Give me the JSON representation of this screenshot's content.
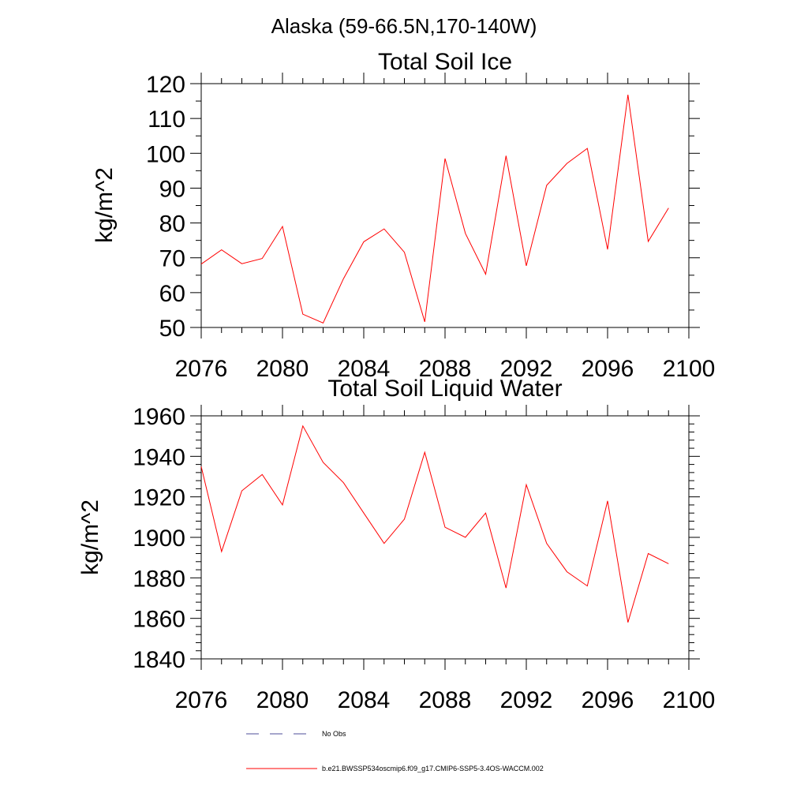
{
  "suptitle": "Alaska (59-66.5N,170-140W)",
  "chart_data": [
    {
      "type": "line",
      "title": "Total Soil Ice",
      "xlabel": "",
      "ylabel": "kg/m^2",
      "xlim": [
        2076,
        2100
      ],
      "ylim": [
        50,
        120
      ],
      "xticks": [
        2076,
        2080,
        2084,
        2088,
        2092,
        2096,
        2100
      ],
      "yticks": [
        50,
        60,
        70,
        80,
        90,
        100,
        110,
        120
      ],
      "series": [
        {
          "name": "b.e21.BWSSP534oscmip6.f09_g17.CMIP6-SSP5-3.4OS-WACCM.002",
          "color": "#ff0000",
          "x": [
            2076,
            2077,
            2078,
            2079,
            2080,
            2081,
            2082,
            2083,
            2084,
            2085,
            2086,
            2087,
            2088,
            2089,
            2090,
            2091,
            2092,
            2093,
            2094,
            2095,
            2096,
            2097,
            2098,
            2099
          ],
          "values": [
            68.2,
            72.3,
            68.3,
            69.8,
            79.0,
            53.8,
            51.3,
            64.0,
            74.6,
            78.3,
            71.6,
            51.6,
            98.5,
            77.0,
            65.3,
            99.3,
            67.7,
            90.8,
            97.1,
            101.4,
            72.4,
            116.8,
            74.7,
            84.3
          ]
        }
      ]
    },
    {
      "type": "line",
      "title": "Total Soil Liquid Water",
      "xlabel": "",
      "ylabel": "kg/m^2",
      "xlim": [
        2076,
        2100
      ],
      "ylim": [
        1840,
        1960
      ],
      "xticks": [
        2076,
        2080,
        2084,
        2088,
        2092,
        2096,
        2100
      ],
      "yticks": [
        1840,
        1860,
        1880,
        1900,
        1920,
        1940,
        1960
      ],
      "series": [
        {
          "name": "b.e21.BWSSP534oscmip6.f09_g17.CMIP6-SSP5-3.4OS-WACCM.002",
          "color": "#ff0000",
          "x": [
            2076,
            2077,
            2078,
            2079,
            2080,
            2081,
            2082,
            2083,
            2084,
            2085,
            2086,
            2087,
            2088,
            2089,
            2090,
            2091,
            2092,
            2093,
            2094,
            2095,
            2096,
            2097,
            2098,
            2099
          ],
          "values": [
            1935,
            1893,
            1923,
            1931,
            1916,
            1955,
            1937,
            1927,
            1912,
            1897,
            1909,
            1942,
            1905,
            1900,
            1912,
            1875,
            1926,
            1897,
            1883,
            1876,
            1918,
            1858,
            1892,
            1887
          ]
        }
      ]
    }
  ],
  "legend": [
    {
      "label": "No Obs",
      "style": "dashed",
      "color": "#4d4d99"
    },
    {
      "label": "b.e21.BWSSP534oscmip6.f09_g17.CMIP6-SSP5-3.4OS-WACCM.002",
      "style": "solid",
      "color": "#ff0000"
    }
  ]
}
